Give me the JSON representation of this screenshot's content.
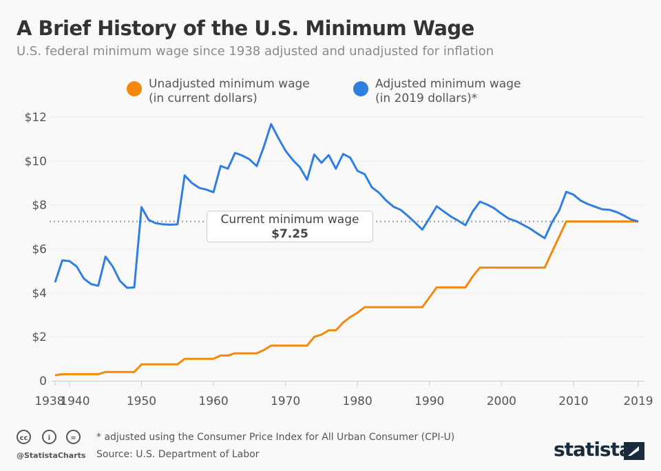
{
  "header": {
    "title": "A Brief History of the U.S. Minimum Wage",
    "subtitle": "U.S. federal minimum wage since 1938 adjusted and unadjusted for inflation"
  },
  "legend": [
    {
      "line1": "Unadjusted minimum wage",
      "line2": "(in current dollars)",
      "color": "#f5870a"
    },
    {
      "line1": "Adjusted minimum wage",
      "line2": "(in 2019 dollars)*",
      "color": "#2f7ee0"
    }
  ],
  "annotation": {
    "label": "Current minimum wage",
    "value": "$7.25",
    "y": 7.25
  },
  "footer": {
    "note": "* adjusted using the Consumer Price Index for All Urban Consumer (CPI-U)",
    "source": "Source: U.S. Department of Labor",
    "handle": "@StatistaCharts",
    "logo": "statista",
    "license_icons": [
      "cc-icon",
      "by-icon",
      "nd-icon"
    ]
  },
  "chart_data": {
    "type": "line",
    "grid": true,
    "legend_position": "top",
    "xlim": [
      1938,
      2019
    ],
    "ylim": [
      0,
      12
    ],
    "x_ticks": [
      1938,
      1940,
      1950,
      1960,
      1970,
      1980,
      1990,
      2000,
      2010,
      2019
    ],
    "y_ticks": [
      {
        "v": 0,
        "label": "0"
      },
      {
        "v": 2,
        "label": "$2"
      },
      {
        "v": 4,
        "label": "$4"
      },
      {
        "v": 6,
        "label": "$6"
      },
      {
        "v": 8,
        "label": "$8"
      },
      {
        "v": 10,
        "label": "$10"
      },
      {
        "v": 12,
        "label": "$12"
      }
    ],
    "x_start": 1938,
    "series": [
      {
        "name": "Unadjusted minimum wage (in current dollars)",
        "color": "#f5870a",
        "values": [
          0.25,
          0.3,
          0.3,
          0.3,
          0.3,
          0.3,
          0.3,
          0.4,
          0.4,
          0.4,
          0.4,
          0.4,
          0.75,
          0.75,
          0.75,
          0.75,
          0.75,
          0.75,
          1.0,
          1.0,
          1.0,
          1.0,
          1.0,
          1.15,
          1.15,
          1.25,
          1.25,
          1.25,
          1.25,
          1.4,
          1.6,
          1.6,
          1.6,
          1.6,
          1.6,
          1.6,
          2.0,
          2.1,
          2.3,
          2.3,
          2.65,
          2.9,
          3.1,
          3.35,
          3.35,
          3.35,
          3.35,
          3.35,
          3.35,
          3.35,
          3.35,
          3.35,
          3.8,
          4.25,
          4.25,
          4.25,
          4.25,
          4.25,
          4.75,
          5.15,
          5.15,
          5.15,
          5.15,
          5.15,
          5.15,
          5.15,
          5.15,
          5.15,
          5.15,
          5.85,
          6.55,
          7.25,
          7.25,
          7.25,
          7.25,
          7.25,
          7.25,
          7.25,
          7.25,
          7.25,
          7.25,
          7.25
        ]
      },
      {
        "name": "Adjusted minimum wage (in 2019 dollars)*",
        "color": "#2f7ee0",
        "values": [
          4.48,
          5.48,
          5.45,
          5.2,
          4.65,
          4.4,
          4.32,
          5.65,
          5.2,
          4.55,
          4.23,
          4.25,
          7.9,
          7.32,
          7.17,
          7.12,
          7.1,
          7.12,
          9.35,
          9.0,
          8.78,
          8.7,
          8.58,
          9.78,
          9.65,
          10.37,
          10.25,
          10.08,
          9.77,
          10.65,
          11.68,
          11.05,
          10.47,
          10.05,
          9.72,
          9.15,
          10.3,
          9.92,
          10.27,
          9.65,
          10.32,
          10.15,
          9.55,
          9.4,
          8.8,
          8.55,
          8.2,
          7.92,
          7.78,
          7.5,
          7.2,
          6.88,
          7.4,
          7.94,
          7.7,
          7.47,
          7.28,
          7.08,
          7.7,
          8.15,
          8.02,
          7.85,
          7.6,
          7.38,
          7.27,
          7.1,
          6.92,
          6.7,
          6.49,
          7.2,
          7.74,
          8.6,
          8.47,
          8.2,
          8.04,
          7.92,
          7.8,
          7.78,
          7.68,
          7.52,
          7.34,
          7.25
        ]
      }
    ]
  }
}
